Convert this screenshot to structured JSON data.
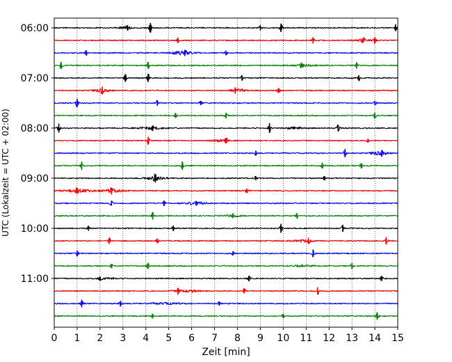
{
  "chart_data": {
    "type": "line",
    "xlabel": "Zeit  [min]",
    "ylabel": "UTC (Lokalzeit = UTC + 02:00)",
    "xlim": [
      0,
      15
    ],
    "x_ticks": [
      0,
      1,
      2,
      3,
      4,
      5,
      6,
      7,
      8,
      9,
      10,
      11,
      12,
      13,
      14,
      15
    ],
    "grid_x": true,
    "rows": 24,
    "row_interval_min": 15,
    "y_tick_labels": [
      {
        "row": 0,
        "label": "06:00"
      },
      {
        "row": 4,
        "label": "07:00"
      },
      {
        "row": 8,
        "label": "08:00"
      },
      {
        "row": 12,
        "label": "09:00"
      },
      {
        "row": 16,
        "label": "10:00"
      },
      {
        "row": 20,
        "label": "11:00"
      }
    ],
    "trace_colors": [
      "#000000",
      "#ff0000",
      "#0000ff",
      "#008000"
    ],
    "events": [
      {
        "row": 0,
        "t": 3.2,
        "amp": 0.4
      },
      {
        "row": 0,
        "t": 4.2,
        "amp": 0.7
      },
      {
        "row": 0,
        "t": 9.0,
        "amp": 0.35
      },
      {
        "row": 0,
        "t": 9.9,
        "amp": 0.6
      },
      {
        "row": 0,
        "t": 14.9,
        "amp": 0.5
      },
      {
        "row": 1,
        "t": 5.4,
        "amp": 0.4
      },
      {
        "row": 1,
        "t": 11.3,
        "amp": 0.45
      },
      {
        "row": 1,
        "t": 13.5,
        "amp": 0.3
      },
      {
        "row": 1,
        "t": 14.0,
        "amp": 0.45
      },
      {
        "row": 2,
        "t": 1.4,
        "amp": 0.4
      },
      {
        "row": 2,
        "t": 5.7,
        "amp": 0.45
      },
      {
        "row": 2,
        "t": 7.5,
        "amp": 0.35
      },
      {
        "row": 3,
        "t": 0.3,
        "amp": 0.5
      },
      {
        "row": 3,
        "t": 4.1,
        "amp": 0.5
      },
      {
        "row": 3,
        "t": 10.8,
        "amp": 0.3
      },
      {
        "row": 3,
        "t": 13.2,
        "amp": 0.45
      },
      {
        "row": 4,
        "t": 3.1,
        "amp": 0.55
      },
      {
        "row": 4,
        "t": 4.1,
        "amp": 0.6
      },
      {
        "row": 4,
        "t": 8.2,
        "amp": 0.4
      },
      {
        "row": 4,
        "t": 13.3,
        "amp": 0.4
      },
      {
        "row": 5,
        "t": 2.1,
        "amp": 0.55
      },
      {
        "row": 5,
        "t": 7.9,
        "amp": 0.45
      },
      {
        "row": 5,
        "t": 9.8,
        "amp": 0.35
      },
      {
        "row": 6,
        "t": 1.0,
        "amp": 0.6
      },
      {
        "row": 6,
        "t": 4.5,
        "amp": 0.4
      },
      {
        "row": 6,
        "t": 6.4,
        "amp": 0.3
      },
      {
        "row": 6,
        "t": 14.0,
        "amp": 0.3
      },
      {
        "row": 7,
        "t": 5.3,
        "amp": 0.35
      },
      {
        "row": 7,
        "t": 7.5,
        "amp": 0.4
      },
      {
        "row": 7,
        "t": 14.0,
        "amp": 0.4
      },
      {
        "row": 8,
        "t": 0.2,
        "amp": 0.65
      },
      {
        "row": 8,
        "t": 4.3,
        "amp": 0.35
      },
      {
        "row": 8,
        "t": 9.4,
        "amp": 0.7
      },
      {
        "row": 8,
        "t": 12.4,
        "amp": 0.5
      },
      {
        "row": 9,
        "t": 4.1,
        "amp": 0.55
      },
      {
        "row": 9,
        "t": 7.5,
        "amp": 0.4
      },
      {
        "row": 9,
        "t": 13.7,
        "amp": 0.3
      },
      {
        "row": 10,
        "t": 8.8,
        "amp": 0.35
      },
      {
        "row": 10,
        "t": 12.7,
        "amp": 0.6
      },
      {
        "row": 10,
        "t": 14.3,
        "amp": 0.45
      },
      {
        "row": 11,
        "t": 1.2,
        "amp": 0.6
      },
      {
        "row": 11,
        "t": 5.6,
        "amp": 0.6
      },
      {
        "row": 11,
        "t": 11.7,
        "amp": 0.4
      },
      {
        "row": 11,
        "t": 13.4,
        "amp": 0.35
      },
      {
        "row": 12,
        "t": 4.4,
        "amp": 0.5
      },
      {
        "row": 12,
        "t": 8.8,
        "amp": 0.3
      },
      {
        "row": 12,
        "t": 11.8,
        "amp": 0.3
      },
      {
        "row": 13,
        "t": 1.0,
        "amp": 0.35
      },
      {
        "row": 13,
        "t": 2.5,
        "amp": 0.45
      },
      {
        "row": 13,
        "t": 8.4,
        "amp": 0.3
      },
      {
        "row": 14,
        "t": 2.5,
        "amp": 0.35
      },
      {
        "row": 14,
        "t": 4.8,
        "amp": 0.4
      },
      {
        "row": 14,
        "t": 6.2,
        "amp": 0.35
      },
      {
        "row": 15,
        "t": 4.3,
        "amp": 0.55
      },
      {
        "row": 15,
        "t": 7.8,
        "amp": 0.35
      },
      {
        "row": 15,
        "t": 10.6,
        "amp": 0.4
      },
      {
        "row": 16,
        "t": 1.5,
        "amp": 0.35
      },
      {
        "row": 16,
        "t": 5.2,
        "amp": 0.4
      },
      {
        "row": 16,
        "t": 9.9,
        "amp": 0.65
      },
      {
        "row": 16,
        "t": 12.6,
        "amp": 0.5
      },
      {
        "row": 17,
        "t": 2.4,
        "amp": 0.45
      },
      {
        "row": 17,
        "t": 4.5,
        "amp": 0.35
      },
      {
        "row": 17,
        "t": 11.1,
        "amp": 0.45
      },
      {
        "row": 17,
        "t": 14.5,
        "amp": 0.55
      },
      {
        "row": 18,
        "t": 1.0,
        "amp": 0.4
      },
      {
        "row": 18,
        "t": 7.8,
        "amp": 0.3
      },
      {
        "row": 18,
        "t": 11.3,
        "amp": 0.55
      },
      {
        "row": 19,
        "t": 2.5,
        "amp": 0.3
      },
      {
        "row": 19,
        "t": 4.1,
        "amp": 0.45
      },
      {
        "row": 19,
        "t": 13.0,
        "amp": 0.45
      },
      {
        "row": 20,
        "t": 2.0,
        "amp": 0.3
      },
      {
        "row": 20,
        "t": 8.5,
        "amp": 0.4
      },
      {
        "row": 20,
        "t": 14.3,
        "amp": 0.35
      },
      {
        "row": 21,
        "t": 5.4,
        "amp": 0.45
      },
      {
        "row": 21,
        "t": 8.3,
        "amp": 0.35
      },
      {
        "row": 21,
        "t": 11.5,
        "amp": 0.55
      },
      {
        "row": 22,
        "t": 1.2,
        "amp": 0.55
      },
      {
        "row": 22,
        "t": 2.9,
        "amp": 0.4
      },
      {
        "row": 22,
        "t": 7.2,
        "amp": 0.3
      },
      {
        "row": 23,
        "t": 4.3,
        "amp": 0.35
      },
      {
        "row": 23,
        "t": 10.0,
        "amp": 0.3
      },
      {
        "row": 23,
        "t": 14.1,
        "amp": 0.55
      }
    ],
    "bursts": [
      {
        "row": 0,
        "t": 3.1,
        "width": 0.7,
        "amp": 0.15
      },
      {
        "row": 1,
        "t": 13.5,
        "width": 0.9,
        "amp": 0.15
      },
      {
        "row": 2,
        "t": 5.6,
        "width": 1.2,
        "amp": 0.25
      },
      {
        "row": 3,
        "t": 10.9,
        "width": 1.4,
        "amp": 0.13
      },
      {
        "row": 5,
        "t": 2.1,
        "width": 0.9,
        "amp": 0.22
      },
      {
        "row": 5,
        "t": 8.0,
        "width": 1.0,
        "amp": 0.2
      },
      {
        "row": 8,
        "t": 4.2,
        "width": 1.3,
        "amp": 0.18
      },
      {
        "row": 8,
        "t": 10.5,
        "width": 1.0,
        "amp": 0.14
      },
      {
        "row": 9,
        "t": 7.3,
        "width": 1.0,
        "amp": 0.18
      },
      {
        "row": 10,
        "t": 14.2,
        "width": 0.9,
        "amp": 0.25
      },
      {
        "row": 12,
        "t": 4.4,
        "width": 1.0,
        "amp": 0.24
      },
      {
        "row": 13,
        "t": 1.2,
        "width": 1.8,
        "amp": 0.18
      },
      {
        "row": 13,
        "t": 2.6,
        "width": 1.2,
        "amp": 0.2
      },
      {
        "row": 14,
        "t": 6.2,
        "width": 1.2,
        "amp": 0.18
      },
      {
        "row": 15,
        "t": 7.8,
        "width": 1.0,
        "amp": 0.12
      },
      {
        "row": 17,
        "t": 10.9,
        "width": 1.2,
        "amp": 0.14
      },
      {
        "row": 19,
        "t": 10.8,
        "width": 1.2,
        "amp": 0.13
      },
      {
        "row": 20,
        "t": 2.2,
        "width": 1.0,
        "amp": 0.12
      },
      {
        "row": 21,
        "t": 5.8,
        "width": 1.3,
        "amp": 0.18
      },
      {
        "row": 22,
        "t": 4.9,
        "width": 1.5,
        "amp": 0.12
      }
    ]
  }
}
